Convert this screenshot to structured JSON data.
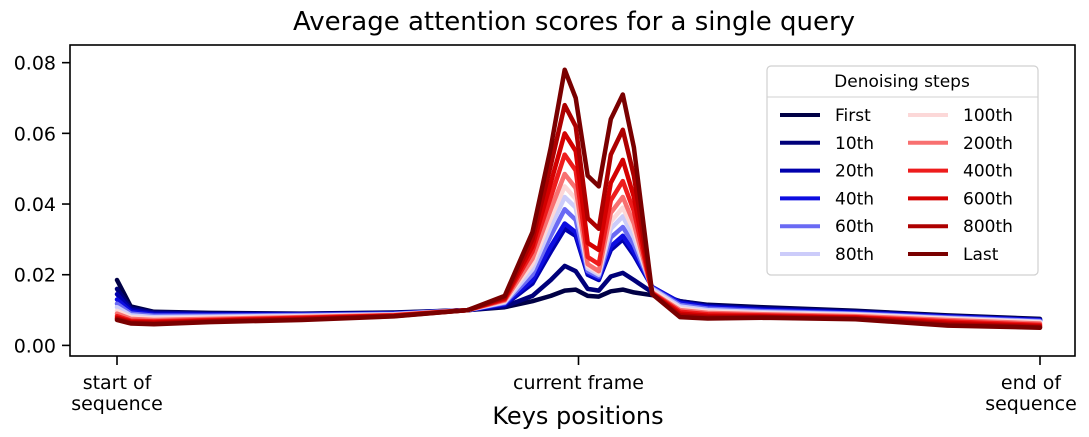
{
  "chart_data": {
    "type": "line",
    "title": "Average attention scores for a single query",
    "xlabel": "Keys positions",
    "ylabel": "",
    "xlim": [
      0,
      1
    ],
    "ylim": [
      -0.003,
      0.085
    ],
    "yticks": [
      0.0,
      0.02,
      0.04,
      0.06,
      0.08
    ],
    "ytick_labels": [
      "0.00",
      "0.02",
      "0.04",
      "0.06",
      "0.08"
    ],
    "xticks": [
      {
        "x": 0.0,
        "label": [
          "start of",
          "sequence"
        ]
      },
      {
        "x": 0.5,
        "label": [
          "current frame"
        ]
      },
      {
        "x": 1.0,
        "label": [
          "end of",
          "sequence"
        ]
      }
    ],
    "grid": false,
    "legend": {
      "title": "Denoising steps",
      "placement": "top-right",
      "columns": 2
    },
    "x": [
      0.0,
      0.015,
      0.04,
      0.1,
      0.2,
      0.3,
      0.38,
      0.42,
      0.45,
      0.47,
      0.485,
      0.497,
      0.51,
      0.522,
      0.535,
      0.548,
      0.56,
      0.58,
      0.61,
      0.64,
      0.7,
      0.8,
      0.9,
      1.0
    ],
    "series": [
      {
        "name": "First",
        "color": "#000045",
        "values": [
          0.0185,
          0.011,
          0.0095,
          0.0092,
          0.009,
          0.0093,
          0.01,
          0.0108,
          0.0125,
          0.014,
          0.0155,
          0.0158,
          0.014,
          0.0138,
          0.0153,
          0.0158,
          0.015,
          0.0142,
          0.0125,
          0.0115,
          0.0108,
          0.0098,
          0.0085,
          0.0075
        ]
      },
      {
        "name": "10th",
        "color": "#00007a",
        "values": [
          0.016,
          0.0105,
          0.0093,
          0.009,
          0.0089,
          0.0092,
          0.01,
          0.011,
          0.014,
          0.0185,
          0.0225,
          0.021,
          0.016,
          0.0155,
          0.0195,
          0.0205,
          0.0185,
          0.015,
          0.0125,
          0.0113,
          0.0105,
          0.0096,
          0.0083,
          0.0073
        ]
      },
      {
        "name": "20th",
        "color": "#0000ad",
        "values": [
          0.0145,
          0.01,
          0.009,
          0.0088,
          0.0088,
          0.0091,
          0.01,
          0.0115,
          0.0175,
          0.0265,
          0.033,
          0.031,
          0.02,
          0.0185,
          0.027,
          0.03,
          0.0255,
          0.0165,
          0.0122,
          0.011,
          0.0102,
          0.0094,
          0.0082,
          0.0072
        ]
      },
      {
        "name": "40th",
        "color": "#0d0de0",
        "values": [
          0.013,
          0.0095,
          0.0087,
          0.0086,
          0.0087,
          0.009,
          0.01,
          0.0117,
          0.0185,
          0.028,
          0.0345,
          0.032,
          0.0205,
          0.019,
          0.028,
          0.031,
          0.0265,
          0.0165,
          0.012,
          0.0108,
          0.01,
          0.0092,
          0.0081,
          0.0071
        ]
      },
      {
        "name": "60th",
        "color": "#6a6af4",
        "values": [
          0.0118,
          0.009,
          0.0084,
          0.0084,
          0.0086,
          0.0089,
          0.01,
          0.012,
          0.02,
          0.031,
          0.0385,
          0.0355,
          0.021,
          0.0195,
          0.0305,
          0.0335,
          0.0285,
          0.0162,
          0.0115,
          0.0104,
          0.0097,
          0.009,
          0.0079,
          0.0069
        ]
      },
      {
        "name": "80th",
        "color": "#ccccfa",
        "values": [
          0.0108,
          0.0085,
          0.008,
          0.0081,
          0.0084,
          0.0088,
          0.01,
          0.0122,
          0.0215,
          0.0335,
          0.042,
          0.039,
          0.0218,
          0.02,
          0.033,
          0.0365,
          0.0305,
          0.016,
          0.011,
          0.01,
          0.0094,
          0.0088,
          0.0077,
          0.0067
        ]
      },
      {
        "name": "100th",
        "color": "#fcd8d8",
        "values": [
          0.0098,
          0.008,
          0.0076,
          0.0078,
          0.0082,
          0.0087,
          0.01,
          0.0125,
          0.023,
          0.036,
          0.045,
          0.0415,
          0.0225,
          0.0205,
          0.035,
          0.039,
          0.0325,
          0.0155,
          0.0105,
          0.0096,
          0.0091,
          0.0086,
          0.0075,
          0.0065
        ]
      },
      {
        "name": "200th",
        "color": "#f87070",
        "values": [
          0.009,
          0.0075,
          0.0072,
          0.0075,
          0.008,
          0.0086,
          0.01,
          0.0127,
          0.0245,
          0.0385,
          0.0485,
          0.0445,
          0.023,
          0.021,
          0.0375,
          0.042,
          0.0345,
          0.015,
          0.01,
          0.0092,
          0.0088,
          0.0083,
          0.0072,
          0.0062
        ]
      },
      {
        "name": "400th",
        "color": "#ee1c1c",
        "values": [
          0.0083,
          0.007,
          0.0068,
          0.0072,
          0.0078,
          0.0085,
          0.01,
          0.013,
          0.0265,
          0.042,
          0.054,
          0.0495,
          0.025,
          0.023,
          0.041,
          0.0465,
          0.038,
          0.0148,
          0.0095,
          0.0088,
          0.0085,
          0.008,
          0.0068,
          0.0058
        ]
      },
      {
        "name": "600th",
        "color": "#d40000",
        "values": [
          0.0078,
          0.0067,
          0.0065,
          0.007,
          0.0076,
          0.0084,
          0.01,
          0.0133,
          0.028,
          0.046,
          0.06,
          0.055,
          0.029,
          0.027,
          0.046,
          0.0525,
          0.042,
          0.0146,
          0.009,
          0.0084,
          0.0082,
          0.0078,
          0.0064,
          0.0055
        ]
      },
      {
        "name": "800th",
        "color": "#ad0000",
        "values": [
          0.0075,
          0.0064,
          0.0062,
          0.0068,
          0.0074,
          0.0083,
          0.01,
          0.0136,
          0.03,
          0.051,
          0.068,
          0.062,
          0.036,
          0.033,
          0.054,
          0.061,
          0.048,
          0.0145,
          0.0085,
          0.008,
          0.008,
          0.0076,
          0.006,
          0.0052
        ]
      },
      {
        "name": "Last",
        "color": "#7a0000",
        "values": [
          0.0072,
          0.0062,
          0.006,
          0.0066,
          0.0072,
          0.0082,
          0.01,
          0.014,
          0.032,
          0.056,
          0.078,
          0.07,
          0.048,
          0.045,
          0.064,
          0.071,
          0.056,
          0.0145,
          0.008,
          0.0076,
          0.0078,
          0.0074,
          0.0056,
          0.005
        ]
      }
    ]
  }
}
